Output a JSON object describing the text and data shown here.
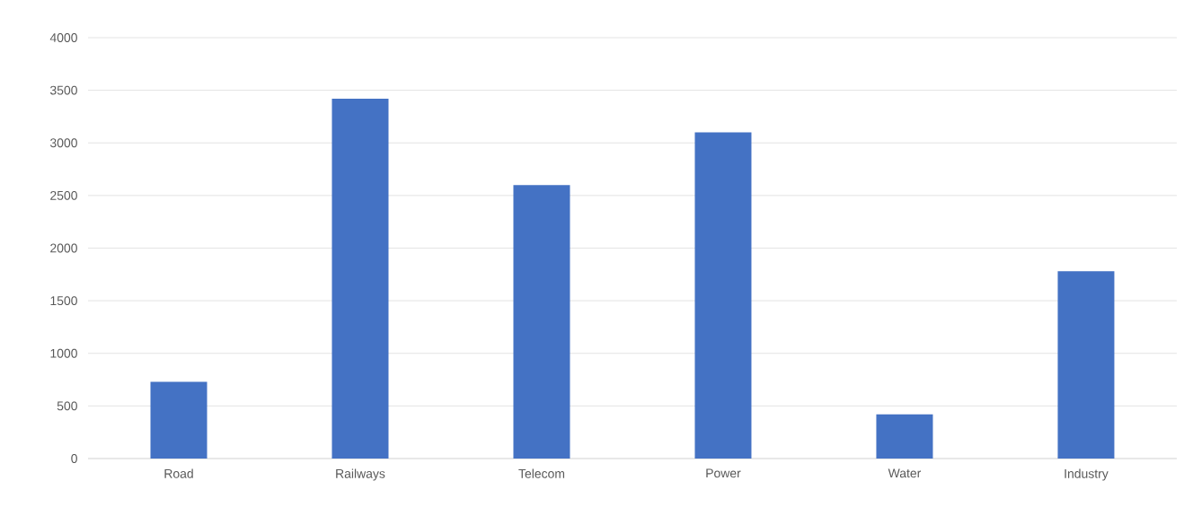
{
  "chart_data": {
    "type": "bar",
    "categories": [
      "Road",
      "Railways",
      "Telecom",
      "Power",
      "Water",
      "Industry"
    ],
    "values": [
      730,
      3420,
      2600,
      3100,
      420,
      1780
    ],
    "color": "#4472c4",
    "ylim": [
      0,
      4000
    ],
    "yticks": [
      0,
      500,
      1000,
      1500,
      2000,
      2500,
      3000,
      3500,
      4000
    ],
    "grid": "y"
  }
}
